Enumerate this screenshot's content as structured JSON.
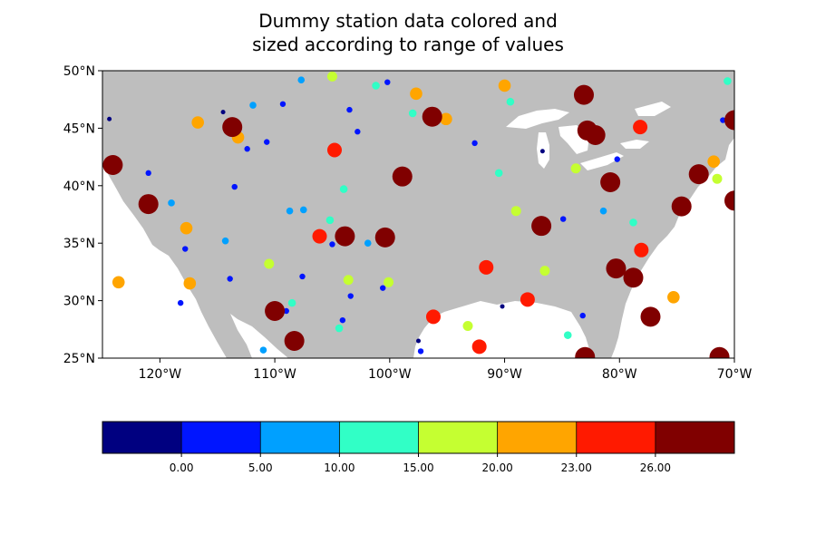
{
  "title": {
    "line1": "Dummy station data colored and",
    "line2": "sized according to range of values"
  },
  "colors": {
    "land": "#bebebe",
    "water": "#ffffff",
    "frame": "#000000",
    "levels": [
      "#000080",
      "#0015ff",
      "#00a0ff",
      "#31ffc6",
      "#c5ff31",
      "#ffa500",
      "#ff1a00",
      "#800000"
    ]
  },
  "chart_data": {
    "type": "scatter",
    "projection": "plate-carree",
    "xlim": [
      -125,
      -70
    ],
    "ylim": [
      25,
      50
    ],
    "xticks": [
      {
        "value": -120,
        "label": "120°W"
      },
      {
        "value": -110,
        "label": "110°W"
      },
      {
        "value": -100,
        "label": "100°W"
      },
      {
        "value": -90,
        "label": "90°W"
      },
      {
        "value": -80,
        "label": "80°W"
      },
      {
        "value": -70,
        "label": "70°W"
      }
    ],
    "yticks": [
      {
        "value": 25,
        "label": "25°N"
      },
      {
        "value": 30,
        "label": "30°N"
      },
      {
        "value": 35,
        "label": "35°N"
      },
      {
        "value": 40,
        "label": "40°N"
      },
      {
        "value": 45,
        "label": "45°N"
      },
      {
        "value": 50,
        "label": "50°N"
      }
    ],
    "colorbar": {
      "levels": [
        0,
        5,
        10,
        15,
        20,
        23,
        26
      ],
      "labels": [
        "0.00",
        "5.00",
        "10.00",
        "15.00",
        "20.00",
        "23.00",
        "26.00"
      ],
      "bins": 8,
      "placement": "bottom"
    },
    "points": [
      {
        "lon": -124.4,
        "lat": 45.8,
        "bin": 0
      },
      {
        "lon": -114.5,
        "lat": 46.4,
        "bin": 0
      },
      {
        "lon": -86.7,
        "lat": 43.0,
        "bin": 0
      },
      {
        "lon": -90.2,
        "lat": 29.5,
        "bin": 0
      },
      {
        "lon": -97.5,
        "lat": 26.5,
        "bin": 0
      },
      {
        "lon": -121.0,
        "lat": 41.1,
        "bin": 1
      },
      {
        "lon": -109.3,
        "lat": 47.1,
        "bin": 1
      },
      {
        "lon": -100.2,
        "lat": 49.0,
        "bin": 1
      },
      {
        "lon": -103.5,
        "lat": 46.6,
        "bin": 1
      },
      {
        "lon": -102.8,
        "lat": 44.7,
        "bin": 1
      },
      {
        "lon": -112.4,
        "lat": 43.2,
        "bin": 1
      },
      {
        "lon": -110.7,
        "lat": 43.8,
        "bin": 1
      },
      {
        "lon": -113.5,
        "lat": 39.9,
        "bin": 1
      },
      {
        "lon": -117.8,
        "lat": 34.5,
        "bin": 1
      },
      {
        "lon": -113.9,
        "lat": 31.9,
        "bin": 1
      },
      {
        "lon": -107.6,
        "lat": 32.1,
        "bin": 1
      },
      {
        "lon": -103.4,
        "lat": 30.4,
        "bin": 1
      },
      {
        "lon": -104.1,
        "lat": 28.3,
        "bin": 1
      },
      {
        "lon": -109.0,
        "lat": 29.1,
        "bin": 1
      },
      {
        "lon": -105.0,
        "lat": 34.9,
        "bin": 1
      },
      {
        "lon": -100.6,
        "lat": 31.1,
        "bin": 1
      },
      {
        "lon": -92.6,
        "lat": 43.7,
        "bin": 1
      },
      {
        "lon": -84.9,
        "lat": 37.1,
        "bin": 1
      },
      {
        "lon": -80.2,
        "lat": 42.3,
        "bin": 1
      },
      {
        "lon": -83.2,
        "lat": 28.7,
        "bin": 1
      },
      {
        "lon": -118.2,
        "lat": 29.8,
        "bin": 1
      },
      {
        "lon": -97.3,
        "lat": 25.6,
        "bin": 1
      },
      {
        "lon": -71.0,
        "lat": 45.7,
        "bin": 1
      },
      {
        "lon": -107.7,
        "lat": 49.2,
        "bin": 2
      },
      {
        "lon": -111.9,
        "lat": 47.0,
        "bin": 2
      },
      {
        "lon": -119.0,
        "lat": 38.5,
        "bin": 2
      },
      {
        "lon": -114.3,
        "lat": 35.2,
        "bin": 2
      },
      {
        "lon": -108.7,
        "lat": 37.8,
        "bin": 2
      },
      {
        "lon": -107.5,
        "lat": 37.9,
        "bin": 2
      },
      {
        "lon": -101.9,
        "lat": 35.0,
        "bin": 2
      },
      {
        "lon": -81.4,
        "lat": 37.8,
        "bin": 2
      },
      {
        "lon": -111.0,
        "lat": 25.7,
        "bin": 2
      },
      {
        "lon": -101.2,
        "lat": 48.7,
        "bin": 3
      },
      {
        "lon": -98.0,
        "lat": 46.3,
        "bin": 3
      },
      {
        "lon": -89.5,
        "lat": 47.3,
        "bin": 3
      },
      {
        "lon": -90.5,
        "lat": 41.1,
        "bin": 3
      },
      {
        "lon": -104.0,
        "lat": 39.7,
        "bin": 3
      },
      {
        "lon": -105.2,
        "lat": 37.0,
        "bin": 3
      },
      {
        "lon": -108.5,
        "lat": 29.8,
        "bin": 3
      },
      {
        "lon": -104.4,
        "lat": 27.6,
        "bin": 3
      },
      {
        "lon": -84.5,
        "lat": 27.0,
        "bin": 3
      },
      {
        "lon": -78.8,
        "lat": 36.8,
        "bin": 3
      },
      {
        "lon": -70.6,
        "lat": 49.1,
        "bin": 3
      },
      {
        "lon": -105.0,
        "lat": 49.5,
        "bin": 4
      },
      {
        "lon": -110.5,
        "lat": 33.2,
        "bin": 4
      },
      {
        "lon": -103.6,
        "lat": 31.8,
        "bin": 4
      },
      {
        "lon": -100.1,
        "lat": 31.6,
        "bin": 4
      },
      {
        "lon": -93.2,
        "lat": 27.8,
        "bin": 4
      },
      {
        "lon": -89.0,
        "lat": 37.8,
        "bin": 4
      },
      {
        "lon": -86.5,
        "lat": 32.6,
        "bin": 4
      },
      {
        "lon": -83.8,
        "lat": 41.5,
        "bin": 4
      },
      {
        "lon": -71.5,
        "lat": 40.6,
        "bin": 4
      },
      {
        "lon": -116.7,
        "lat": 45.5,
        "bin": 5
      },
      {
        "lon": -113.2,
        "lat": 44.2,
        "bin": 5
      },
      {
        "lon": -117.7,
        "lat": 36.3,
        "bin": 5
      },
      {
        "lon": -117.4,
        "lat": 31.5,
        "bin": 5
      },
      {
        "lon": -123.6,
        "lat": 31.6,
        "bin": 5
      },
      {
        "lon": -97.7,
        "lat": 48.0,
        "bin": 5
      },
      {
        "lon": -95.1,
        "lat": 45.8,
        "bin": 5
      },
      {
        "lon": -90.0,
        "lat": 48.7,
        "bin": 5
      },
      {
        "lon": -71.8,
        "lat": 42.1,
        "bin": 5
      },
      {
        "lon": -75.3,
        "lat": 30.3,
        "bin": 5
      },
      {
        "lon": -104.8,
        "lat": 43.1,
        "bin": 6
      },
      {
        "lon": -106.1,
        "lat": 35.6,
        "bin": 6
      },
      {
        "lon": -91.6,
        "lat": 32.9,
        "bin": 6
      },
      {
        "lon": -96.2,
        "lat": 28.6,
        "bin": 6
      },
      {
        "lon": -92.2,
        "lat": 26.0,
        "bin": 6
      },
      {
        "lon": -88.0,
        "lat": 30.1,
        "bin": 6
      },
      {
        "lon": -78.2,
        "lat": 45.1,
        "bin": 6
      },
      {
        "lon": -78.1,
        "lat": 34.4,
        "bin": 6
      },
      {
        "lon": -124.1,
        "lat": 41.8,
        "bin": 7
      },
      {
        "lon": -121.0,
        "lat": 38.4,
        "bin": 7
      },
      {
        "lon": -113.7,
        "lat": 45.1,
        "bin": 7
      },
      {
        "lon": -110.0,
        "lat": 29.1,
        "bin": 7
      },
      {
        "lon": -108.3,
        "lat": 26.5,
        "bin": 7
      },
      {
        "lon": -103.9,
        "lat": 35.6,
        "bin": 7
      },
      {
        "lon": -100.4,
        "lat": 35.5,
        "bin": 7
      },
      {
        "lon": -98.9,
        "lat": 40.8,
        "bin": 7
      },
      {
        "lon": -96.3,
        "lat": 46.0,
        "bin": 7
      },
      {
        "lon": -83.1,
        "lat": 47.9,
        "bin": 7
      },
      {
        "lon": -82.8,
        "lat": 44.8,
        "bin": 7
      },
      {
        "lon": -82.1,
        "lat": 44.4,
        "bin": 7
      },
      {
        "lon": -80.8,
        "lat": 40.3,
        "bin": 7
      },
      {
        "lon": -86.8,
        "lat": 36.5,
        "bin": 7
      },
      {
        "lon": -80.3,
        "lat": 32.8,
        "bin": 7
      },
      {
        "lon": -78.8,
        "lat": 32.0,
        "bin": 7
      },
      {
        "lon": -77.3,
        "lat": 28.6,
        "bin": 7
      },
      {
        "lon": -83.0,
        "lat": 25.1,
        "bin": 7
      },
      {
        "lon": -74.6,
        "lat": 38.2,
        "bin": 7
      },
      {
        "lon": -73.1,
        "lat": 41.0,
        "bin": 7
      },
      {
        "lon": -70.0,
        "lat": 45.7,
        "bin": 7
      },
      {
        "lon": -70.0,
        "lat": 38.7,
        "bin": 7
      },
      {
        "lon": -71.3,
        "lat": 25.1,
        "bin": 7
      }
    ]
  }
}
